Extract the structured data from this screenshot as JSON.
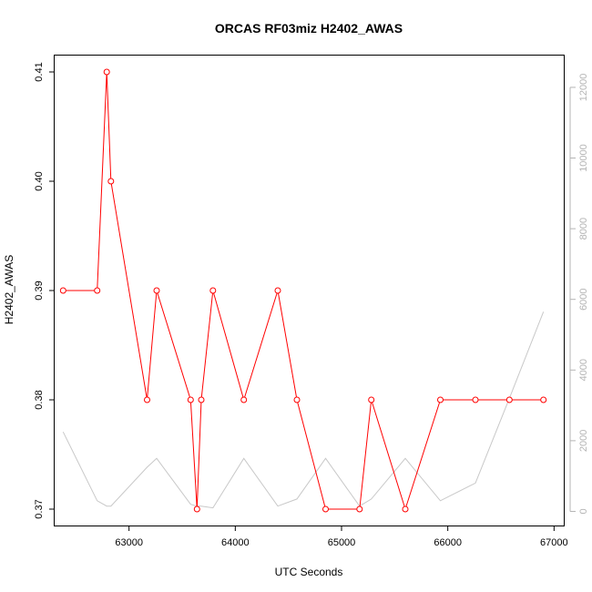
{
  "chart_data": {
    "type": "line",
    "title": "ORCAS RF03miz H2402_AWAS",
    "xlabel": "UTC Seconds",
    "ylabel": "H2402_AWAS",
    "xlim": [
      62300,
      67100
    ],
    "ylim": [
      0.3685,
      0.4115
    ],
    "y2lim": [
      -400,
      12900
    ],
    "x_ticks": [
      63000,
      64000,
      65000,
      66000,
      67000
    ],
    "y_ticks": [
      0.37,
      0.38,
      0.39,
      0.4,
      0.41
    ],
    "y2_ticks": [
      0,
      2000,
      4000,
      6000,
      8000,
      10000,
      12000
    ],
    "grid": false,
    "colors": {
      "primary": "#ff0000",
      "secondary": "#c8c8c8",
      "frame": "#000000",
      "right_axis": "#b4b4b4"
    },
    "series": [
      {
        "axis": "left",
        "style": "line+points",
        "x": [
          62380,
          62700,
          62790,
          62830,
          63170,
          63260,
          63580,
          63640,
          63680,
          63790,
          64080,
          64400,
          64580,
          64850,
          65170,
          65280,
          65600,
          65930,
          66260,
          66580,
          66900
        ],
        "y": [
          0.39,
          0.39,
          0.41,
          0.4,
          0.38,
          0.39,
          0.38,
          0.37,
          0.38,
          0.39,
          0.38,
          0.39,
          0.38,
          0.37,
          0.37,
          0.38,
          0.37,
          0.38,
          0.38,
          0.38,
          0.38
        ]
      },
      {
        "axis": "right",
        "style": "line",
        "x": [
          62380,
          62700,
          62790,
          62830,
          63170,
          63260,
          63580,
          63640,
          63680,
          63790,
          64080,
          64400,
          64580,
          64850,
          65170,
          65280,
          65600,
          65930,
          66260,
          66580,
          66900
        ],
        "y": [
          2250,
          300,
          150,
          150,
          1250,
          1500,
          200,
          150,
          150,
          100,
          1500,
          150,
          350,
          1500,
          150,
          350,
          1500,
          300,
          800,
          3200,
          5650
        ]
      }
    ]
  }
}
